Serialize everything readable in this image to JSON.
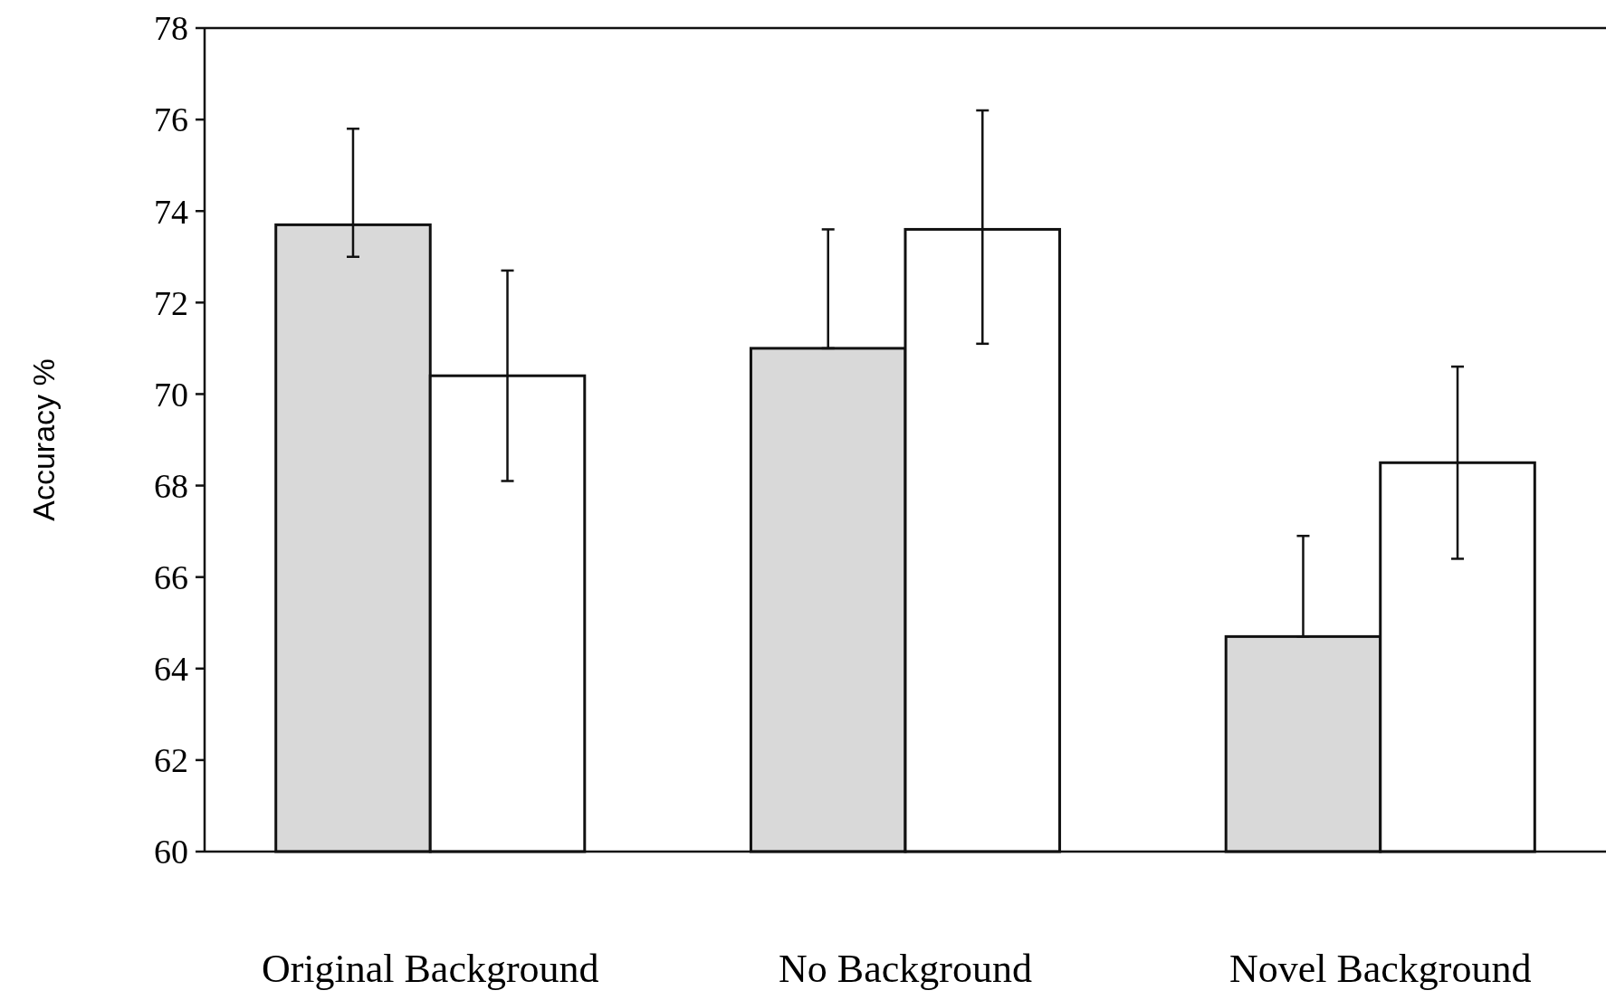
{
  "chart_data": {
    "type": "bar",
    "ylabel": "Accuracy %",
    "categories": [
      "Original Background",
      "No Background",
      "Novel Background"
    ],
    "series": [
      {
        "color": "#d9d9d9",
        "values": [
          73.7,
          71.0,
          64.7
        ],
        "errors": [
          [
            73.0,
            75.8
          ],
          [
            71.0,
            73.6
          ],
          [
            64.7,
            66.9
          ]
        ]
      },
      {
        "color": "#ffffff",
        "values": [
          70.4,
          73.6,
          68.5
        ],
        "errors": [
          [
            68.1,
            72.7
          ],
          [
            71.1,
            76.2
          ],
          [
            66.4,
            70.6
          ]
        ]
      }
    ],
    "ylim": [
      60,
      78
    ],
    "yticks": [
      60,
      62,
      64,
      66,
      68,
      70,
      72,
      74,
      76,
      78
    ]
  }
}
